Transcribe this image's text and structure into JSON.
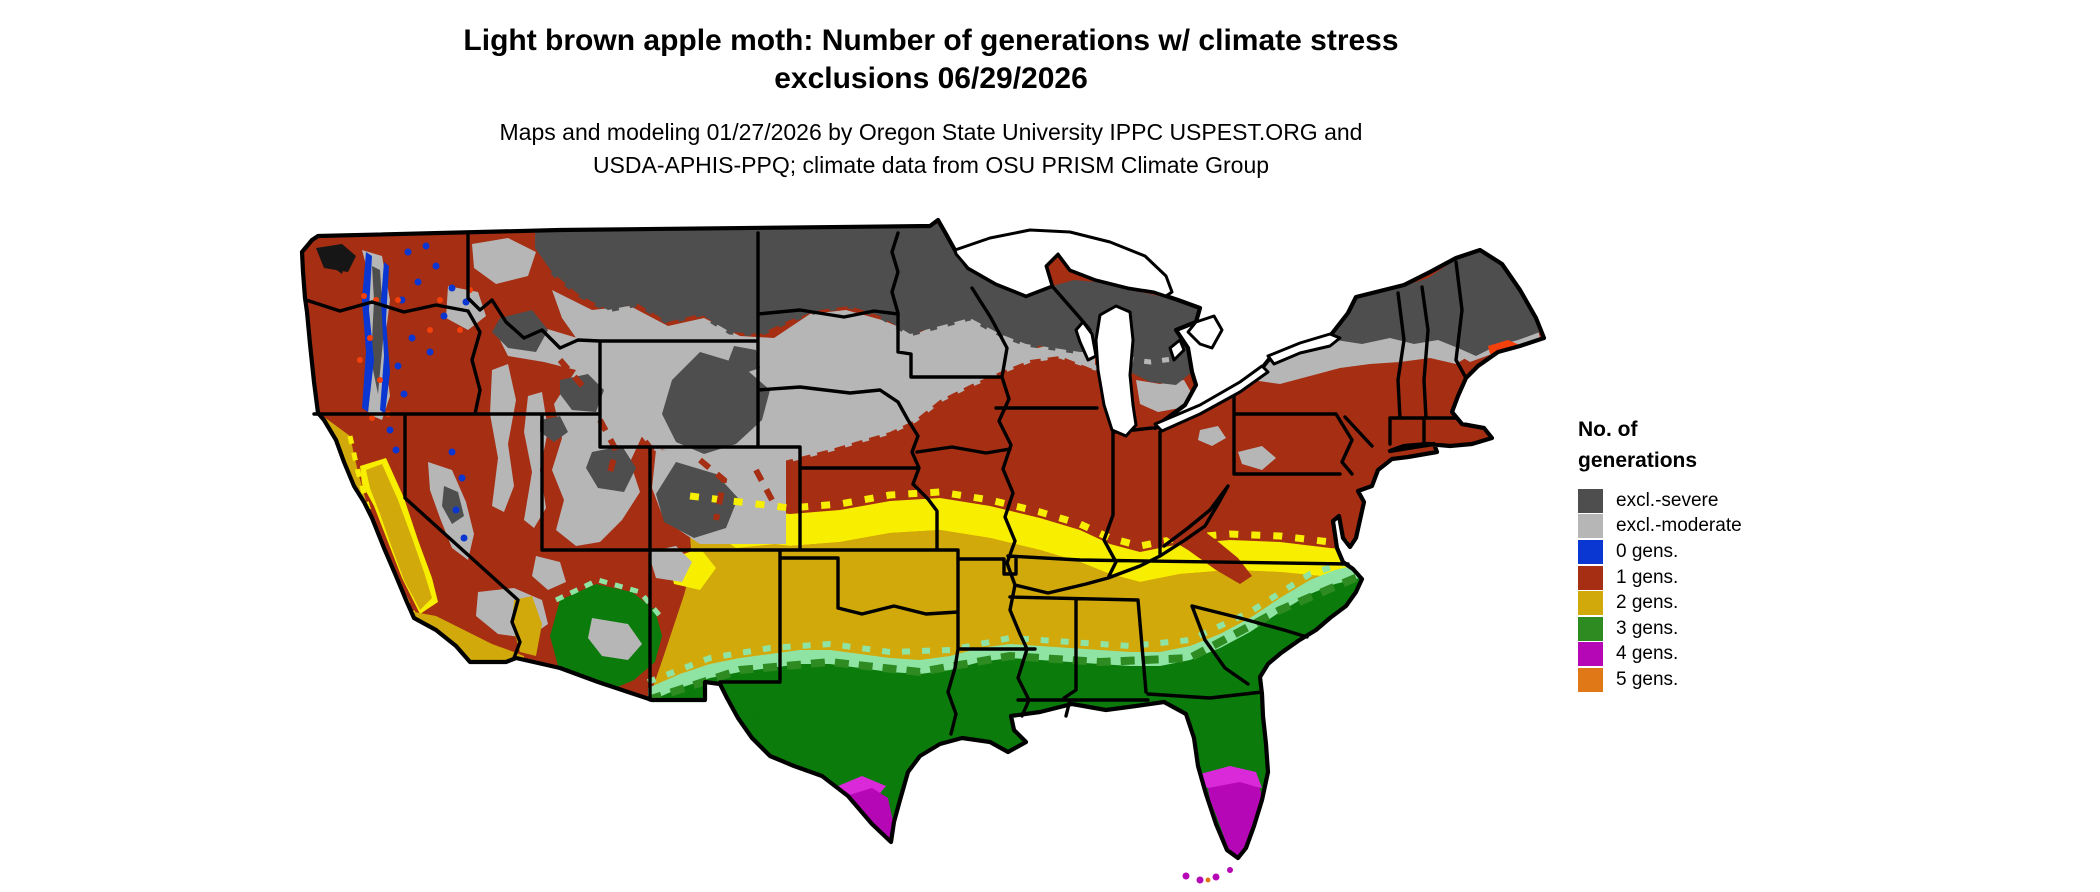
{
  "title": {
    "line1": "Light brown apple moth: Number of generations w/ climate stress",
    "line2": "exclusions 06/29/2026"
  },
  "subtitle": {
    "line1": "Maps and modeling 01/27/2026 by Oregon State University IPPC USPEST.ORG and",
    "line2": "USDA-APHIS-PPQ; climate data from OSU PRISM Climate Group"
  },
  "legend": {
    "title": {
      "line1": "No. of",
      "line2": "generations"
    },
    "items": [
      {
        "label": "excl.-severe",
        "color": "severe"
      },
      {
        "label": "excl.-moderate",
        "color": "moderate"
      },
      {
        "label": "0 gens.",
        "color": "gens0"
      },
      {
        "label": "1 gens.",
        "color": "gens1"
      },
      {
        "label": "2 gens.",
        "color": "gens2"
      },
      {
        "label": "3 gens.",
        "color": "gens3"
      },
      {
        "label": "4 gens.",
        "color": "gens4"
      },
      {
        "label": "5 gens.",
        "color": "gens5"
      }
    ]
  },
  "colors": {
    "severe": "#4e4e4e",
    "moderate": "#b6b6b6",
    "gens0": "#0a36d2",
    "gens1": "#a52e13",
    "gens2": "#d1a90b",
    "gens3": "#2e8b22",
    "gens4": "#b607b6",
    "gens5": "#e07818",
    "deep_green": "#0b7b0b",
    "mint": "#8fe4a4",
    "bright_yellow": "#f7ee00",
    "hot_orange": "#f4400a",
    "bright_magenta": "#d929d9",
    "near_black": "#161616",
    "water": "#ffffff",
    "line": "#000000"
  }
}
